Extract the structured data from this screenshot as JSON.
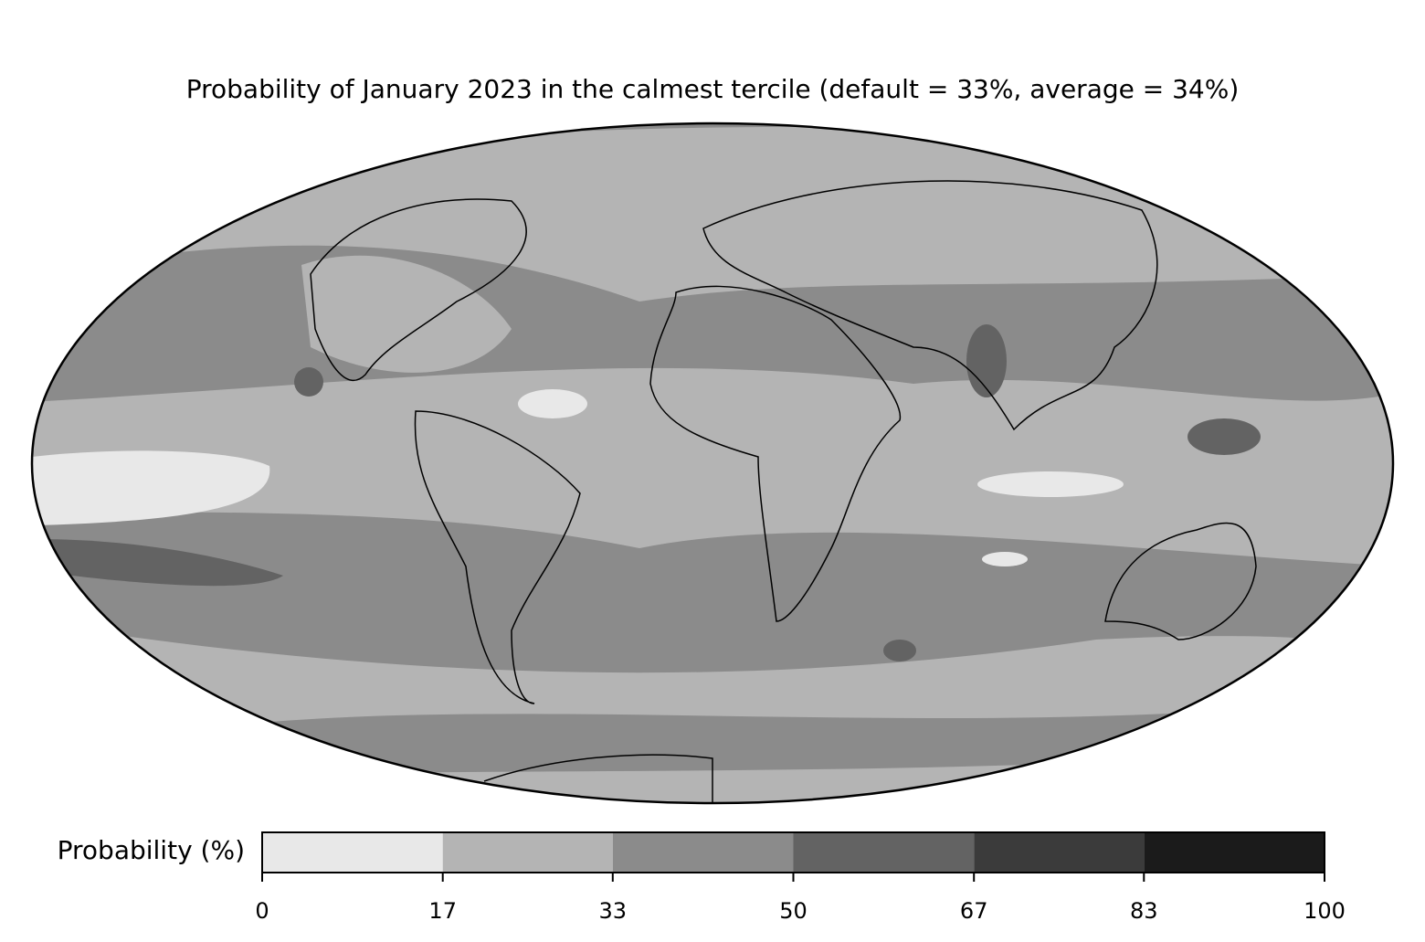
{
  "chart_data": {
    "type": "map",
    "title": "Probability of January 2023 in the calmest tercile (default = 33%, average = 34%)",
    "colorbar": {
      "label": "Probability (%)",
      "lim": [
        0,
        100
      ],
      "ticks": [
        0,
        17,
        33,
        50,
        67,
        83,
        100
      ],
      "colors": [
        "#e8e8e8",
        "#b4b4b4",
        "#8b8b8b",
        "#636363",
        "#3b3b3b",
        "#1b1b1b"
      ]
    }
  }
}
